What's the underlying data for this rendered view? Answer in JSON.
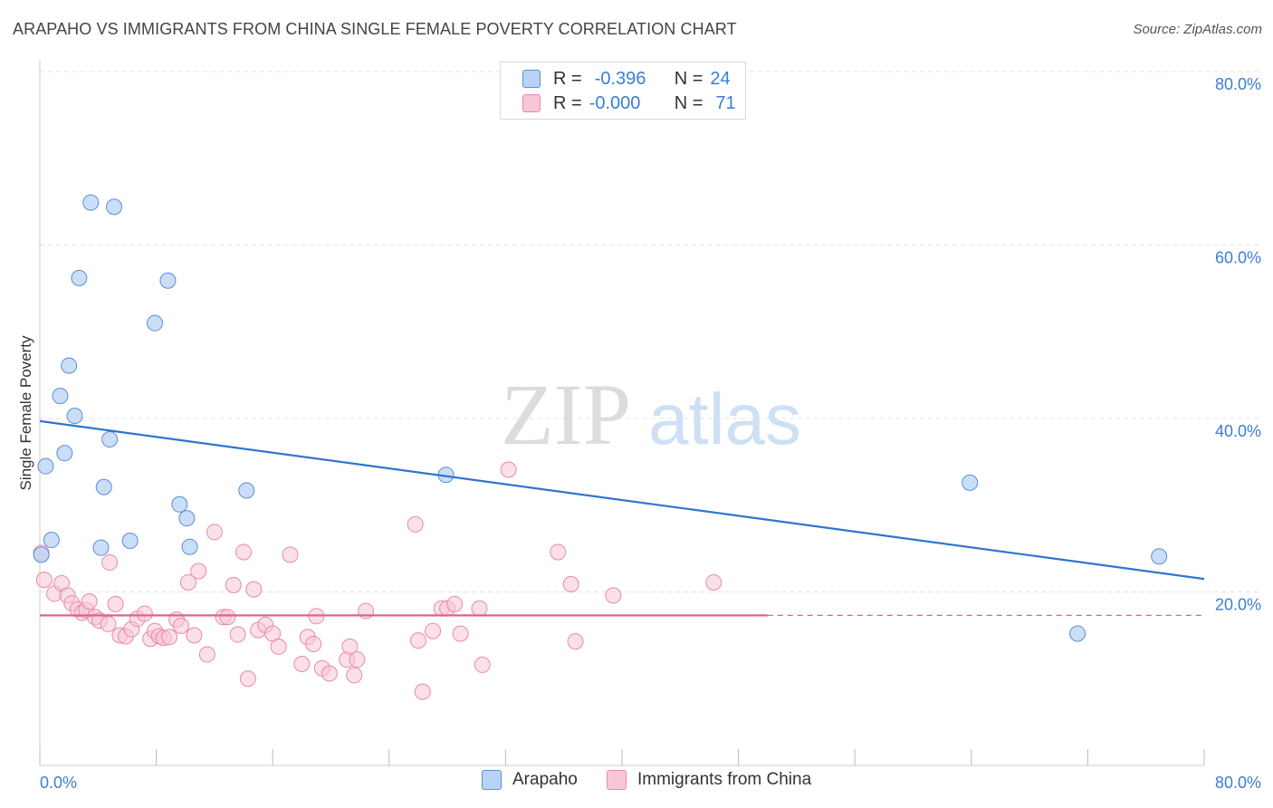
{
  "header": {
    "title": "ARAPAHO VS IMMIGRANTS FROM CHINA SINGLE FEMALE POVERTY CORRELATION CHART",
    "source": "Source: ZipAtlas.com"
  },
  "watermark": {
    "part1": "ZIP",
    "part2": "atlas"
  },
  "legend_top": {
    "rows": [
      {
        "r_label": "R =",
        "r_value": "-0.396",
        "n_label": "N =",
        "n_value": "24"
      },
      {
        "r_label": "R =",
        "r_value": "-0.000",
        "n_label": "N =",
        "n_value": "71"
      }
    ]
  },
  "colors": {
    "arapaho_fill": "#b8d3f5",
    "arapaho_stroke": "#5b8fd6",
    "arapaho_line": "#2f74d0",
    "china_fill": "#f8c6d6",
    "china_stroke": "#e88aa8",
    "china_line": "#e0628b",
    "axis_text": "#3b7dd8",
    "grid": "#e3e3e3"
  },
  "chart_data": {
    "type": "scatter",
    "title": "ARAPAHO VS IMMIGRANTS FROM CHINA SINGLE FEMALE POVERTY CORRELATION CHART",
    "ylabel": "Single Female Poverty",
    "xlabel": "",
    "xlim": [
      0,
      80
    ],
    "ylim": [
      0,
      80
    ],
    "x_tick_labels": [
      "0.0%",
      "80.0%"
    ],
    "y_tick_labels": [
      "20.0%",
      "40.0%",
      "60.0%",
      "80.0%"
    ],
    "y_ticks": [
      20,
      40,
      60,
      80
    ],
    "grid": true,
    "legend_position": "bottom",
    "series": [
      {
        "name": "Arapaho",
        "r": -0.396,
        "n": 24,
        "trend": {
          "x": [
            0,
            80
          ],
          "y": [
            39.7,
            21.5
          ]
        },
        "points": [
          [
            0.1,
            24.3
          ],
          [
            0.4,
            34.5
          ],
          [
            0.8,
            26.0
          ],
          [
            1.4,
            42.6
          ],
          [
            1.7,
            36.0
          ],
          [
            2.0,
            46.1
          ],
          [
            2.4,
            40.3
          ],
          [
            2.7,
            56.2
          ],
          [
            3.5,
            64.9
          ],
          [
            4.2,
            25.1
          ],
          [
            4.4,
            32.1
          ],
          [
            4.8,
            37.6
          ],
          [
            5.1,
            64.4
          ],
          [
            6.2,
            25.9
          ],
          [
            7.9,
            51.0
          ],
          [
            8.8,
            55.9
          ],
          [
            9.6,
            30.1
          ],
          [
            10.1,
            28.5
          ],
          [
            10.3,
            25.2
          ],
          [
            14.2,
            31.7
          ],
          [
            27.9,
            33.5
          ],
          [
            63.9,
            32.6
          ],
          [
            71.3,
            15.2
          ],
          [
            76.9,
            24.1
          ]
        ]
      },
      {
        "name": "Immigrants from China",
        "r": -0.0,
        "n": 71,
        "trend": {
          "x": [
            0,
            80
          ],
          "y": [
            17.3,
            17.3
          ],
          "solid_until": 50
        },
        "points": [
          [
            0.1,
            24.5
          ],
          [
            0.3,
            21.4
          ],
          [
            1.0,
            19.8
          ],
          [
            1.5,
            21.0
          ],
          [
            1.9,
            19.6
          ],
          [
            2.2,
            18.7
          ],
          [
            2.6,
            18.0
          ],
          [
            2.9,
            17.6
          ],
          [
            3.2,
            17.9
          ],
          [
            3.4,
            18.9
          ],
          [
            3.8,
            17.1
          ],
          [
            4.1,
            16.7
          ],
          [
            4.7,
            16.3
          ],
          [
            4.8,
            23.4
          ],
          [
            5.2,
            18.6
          ],
          [
            5.5,
            15.0
          ],
          [
            5.9,
            14.9
          ],
          [
            6.3,
            15.7
          ],
          [
            6.7,
            16.9
          ],
          [
            7.2,
            17.5
          ],
          [
            7.6,
            14.6
          ],
          [
            7.9,
            15.5
          ],
          [
            8.2,
            14.9
          ],
          [
            8.5,
            14.7
          ],
          [
            8.9,
            14.8
          ],
          [
            9.4,
            16.8
          ],
          [
            9.7,
            16.1
          ],
          [
            10.2,
            21.1
          ],
          [
            10.6,
            15.0
          ],
          [
            10.9,
            22.4
          ],
          [
            11.5,
            12.8
          ],
          [
            12.0,
            26.9
          ],
          [
            12.6,
            17.1
          ],
          [
            12.9,
            17.1
          ],
          [
            13.3,
            20.8
          ],
          [
            13.6,
            15.1
          ],
          [
            14.0,
            24.6
          ],
          [
            14.3,
            10.0
          ],
          [
            14.7,
            20.3
          ],
          [
            15.0,
            15.6
          ],
          [
            15.5,
            16.2
          ],
          [
            16.0,
            15.2
          ],
          [
            16.4,
            13.7
          ],
          [
            17.2,
            24.3
          ],
          [
            18.0,
            11.7
          ],
          [
            18.4,
            14.8
          ],
          [
            18.8,
            14.0
          ],
          [
            19.0,
            17.2
          ],
          [
            19.4,
            11.2
          ],
          [
            19.9,
            10.6
          ],
          [
            21.1,
            12.2
          ],
          [
            21.3,
            13.7
          ],
          [
            21.6,
            10.4
          ],
          [
            21.8,
            12.2
          ],
          [
            22.4,
            17.8
          ],
          [
            25.8,
            27.8
          ],
          [
            26.0,
            14.4
          ],
          [
            26.3,
            8.5
          ],
          [
            27.0,
            15.5
          ],
          [
            27.6,
            18.1
          ],
          [
            28.0,
            18.1
          ],
          [
            28.5,
            18.6
          ],
          [
            28.9,
            15.2
          ],
          [
            30.2,
            18.1
          ],
          [
            30.4,
            11.6
          ],
          [
            32.2,
            34.1
          ],
          [
            35.6,
            24.6
          ],
          [
            36.5,
            20.9
          ],
          [
            36.8,
            14.3
          ],
          [
            39.4,
            19.6
          ],
          [
            46.3,
            21.1
          ]
        ]
      }
    ]
  },
  "bottom_legend": [
    {
      "label": "Arapaho"
    },
    {
      "label": "Immigrants from China"
    }
  ]
}
